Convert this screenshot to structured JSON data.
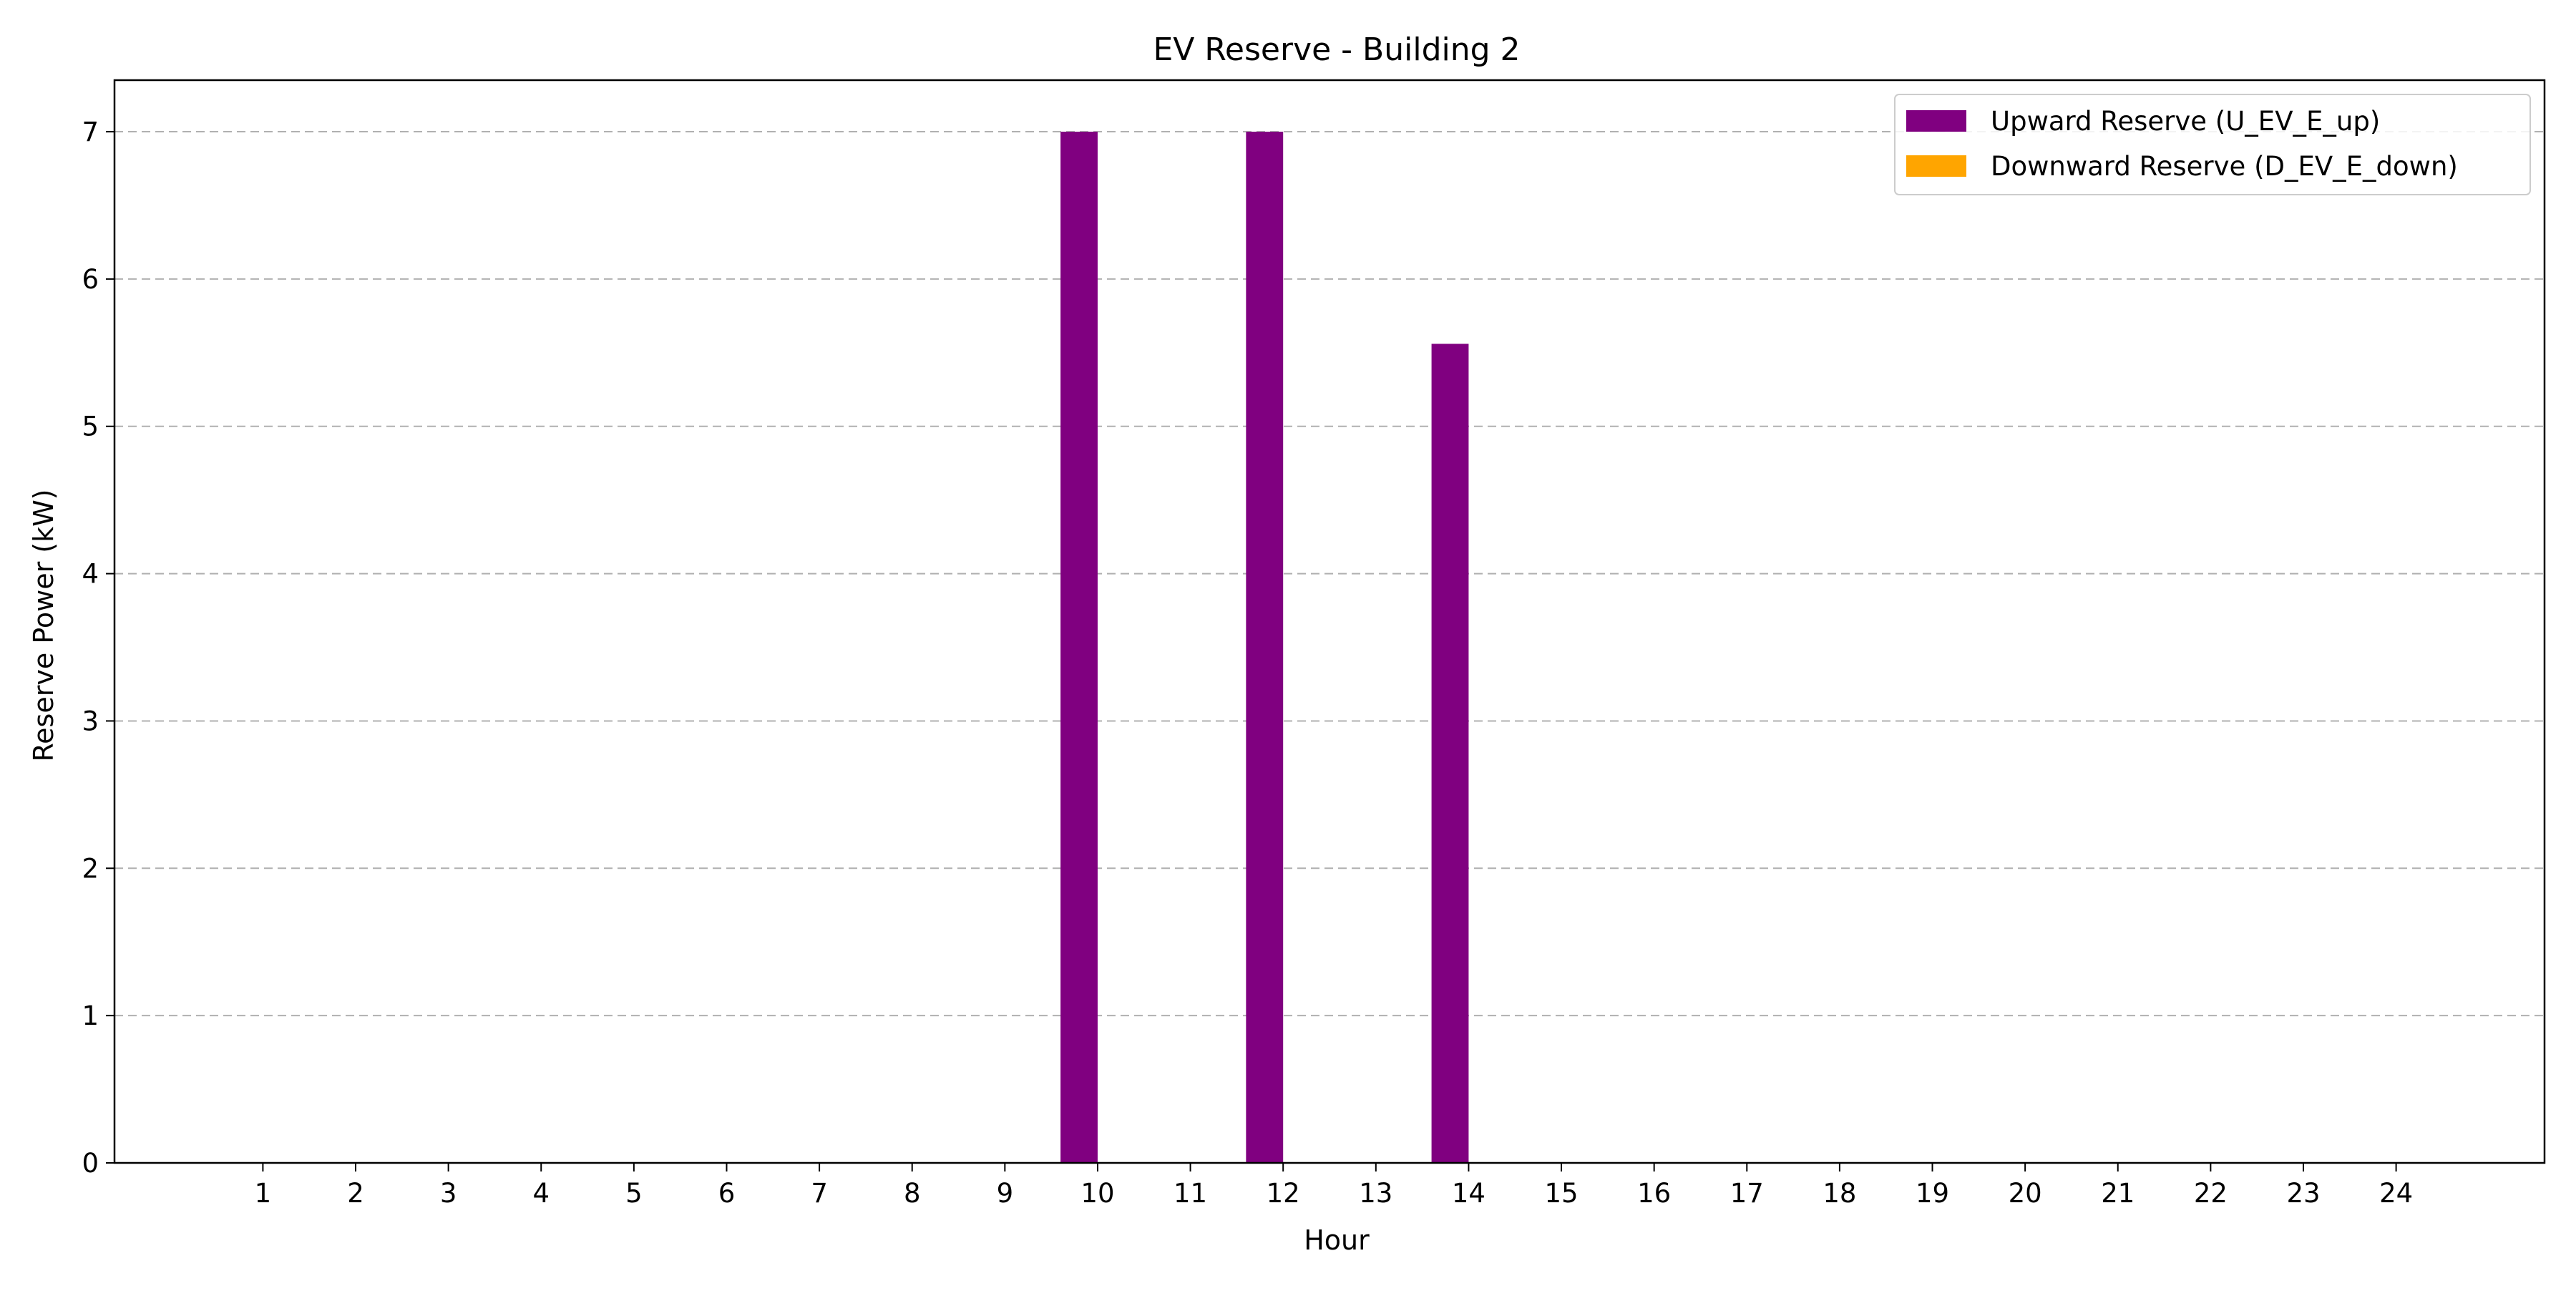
{
  "chart_data": {
    "type": "bar",
    "title": "EV Reserve - Building 2",
    "xlabel": "Hour",
    "ylabel": "Reserve Power (kW)",
    "categories": [
      "1",
      "2",
      "3",
      "4",
      "5",
      "6",
      "7",
      "8",
      "9",
      "10",
      "11",
      "12",
      "13",
      "14",
      "15",
      "16",
      "17",
      "18",
      "19",
      "20",
      "21",
      "22",
      "23",
      "24"
    ],
    "x_range": [
      -0.6,
      25.6
    ],
    "ylim": [
      0,
      7.35
    ],
    "yticks": [
      "0",
      "1",
      "2",
      "3",
      "4",
      "5",
      "6",
      "7"
    ],
    "grid": {
      "axis": "y",
      "style": "dashed",
      "color": "#b0b0b0"
    },
    "legend_position": "top-right",
    "series": [
      {
        "name": "Upward Reserve (U_EV_E_up)",
        "color": "#800080",
        "values": [
          0,
          0,
          0,
          0,
          0,
          0,
          0,
          0,
          0,
          7,
          0,
          7,
          0,
          5.56,
          0,
          0,
          0,
          0,
          0,
          0,
          0,
          0,
          0,
          0
        ]
      },
      {
        "name": "Downward Reserve (D_EV_E_down)",
        "color": "#ffa500",
        "values": [
          0,
          0,
          0,
          0,
          0,
          0,
          0,
          0,
          0,
          0,
          0,
          0,
          0,
          0,
          0,
          0,
          0,
          0,
          0,
          0,
          0,
          0,
          0,
          0
        ]
      }
    ]
  }
}
